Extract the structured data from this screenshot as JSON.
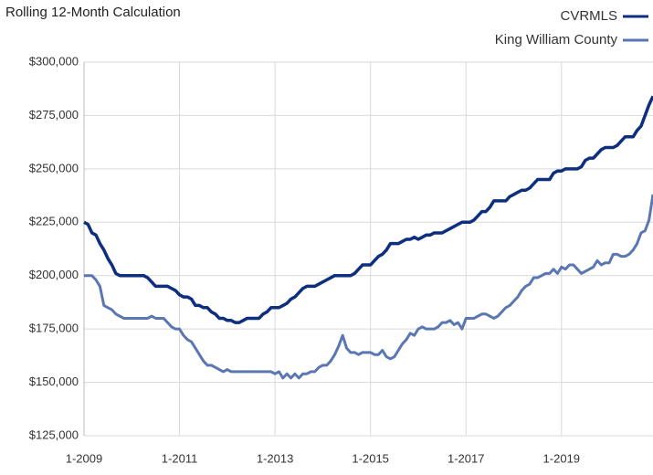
{
  "chart_data": {
    "type": "line",
    "title": "Rolling 12-Month Calculation",
    "categories": [
      "1-2009",
      null,
      null,
      null,
      null,
      null,
      null,
      null,
      null,
      null,
      null,
      null,
      null,
      null,
      null,
      null,
      null,
      null,
      null,
      null,
      null,
      null,
      null,
      null,
      "1-2011",
      null,
      null,
      null,
      null,
      null,
      null,
      null,
      null,
      null,
      null,
      null,
      null,
      null,
      null,
      null,
      null,
      null,
      null,
      null,
      null,
      null,
      null,
      null,
      "1-2013",
      null,
      null,
      null,
      null,
      null,
      null,
      null,
      null,
      null,
      null,
      null,
      null,
      null,
      null,
      null,
      null,
      null,
      null,
      null,
      null,
      null,
      null,
      null,
      "1-2015",
      null,
      null,
      null,
      null,
      null,
      null,
      null,
      null,
      null,
      null,
      null,
      null,
      null,
      null,
      null,
      null,
      null,
      null,
      null,
      null,
      null,
      null,
      null,
      "1-2017",
      null,
      null,
      null,
      null,
      null,
      null,
      null,
      null,
      null,
      null,
      null,
      null,
      null,
      null,
      null,
      null,
      null,
      null,
      null,
      null,
      null,
      null,
      null,
      "1-2019",
      null,
      null,
      null,
      null,
      null,
      null,
      null,
      null,
      null,
      null,
      null,
      null,
      null,
      null,
      null,
      null,
      null,
      null,
      null,
      null,
      null,
      null,
      null
    ],
    "series": [
      {
        "name": "CVRMLS",
        "color": "#0d2f7e",
        "values": [
          225000,
          224000,
          220000,
          219000,
          215000,
          212000,
          208000,
          205000,
          201000,
          200000,
          200000,
          200000,
          200000,
          200000,
          200000,
          200000,
          199000,
          197000,
          195000,
          195000,
          195000,
          195000,
          194000,
          193000,
          191000,
          190000,
          190000,
          189000,
          186000,
          186000,
          185000,
          185000,
          183000,
          182000,
          180000,
          180000,
          179000,
          179000,
          178000,
          178000,
          179000,
          180000,
          180000,
          180000,
          180000,
          182000,
          183000,
          185000,
          185000,
          185000,
          186000,
          187000,
          189000,
          190000,
          192000,
          194000,
          195000,
          195000,
          195000,
          196000,
          197000,
          198000,
          199000,
          200000,
          200000,
          200000,
          200000,
          200000,
          201000,
          203000,
          205000,
          205000,
          205000,
          207000,
          209000,
          210000,
          212000,
          215000,
          215000,
          215000,
          216000,
          217000,
          217000,
          218000,
          217000,
          218000,
          219000,
          219000,
          220000,
          220000,
          220000,
          221000,
          222000,
          223000,
          224000,
          225000,
          225000,
          225000,
          226000,
          228000,
          230000,
          230000,
          232000,
          235000,
          235000,
          235000,
          235000,
          237000,
          238000,
          239000,
          240000,
          240000,
          241000,
          243000,
          245000,
          245000,
          245000,
          245000,
          248000,
          249000,
          249000,
          250000,
          250000,
          250000,
          250000,
          251000,
          254000,
          255000,
          255000,
          257000,
          259000,
          260000,
          260000,
          260000,
          261000,
          263000,
          265000,
          265000,
          265000,
          268000,
          270000,
          275000,
          280000,
          284000
        ]
      },
      {
        "name": "King William County",
        "color": "#5b77b3",
        "values": [
          200000,
          200000,
          200000,
          198000,
          195000,
          186000,
          185000,
          184000,
          182000,
          181000,
          180000,
          180000,
          180000,
          180000,
          180000,
          180000,
          180000,
          181000,
          180000,
          180000,
          180000,
          178000,
          176000,
          175000,
          175000,
          172000,
          170000,
          169000,
          166000,
          163000,
          160000,
          158000,
          158000,
          157000,
          156000,
          155000,
          156000,
          155000,
          155000,
          155000,
          155000,
          155000,
          155000,
          155000,
          155000,
          155000,
          155000,
          155000,
          154000,
          155000,
          152000,
          154000,
          152000,
          154000,
          152000,
          154000,
          154000,
          155000,
          155000,
          157000,
          158000,
          158000,
          160000,
          163000,
          167000,
          172000,
          166000,
          164000,
          164000,
          163000,
          164000,
          164000,
          164000,
          163000,
          163000,
          165000,
          162000,
          161000,
          162000,
          165000,
          168000,
          170000,
          173000,
          172000,
          175000,
          176000,
          175000,
          175000,
          175000,
          176000,
          178000,
          178000,
          179000,
          177000,
          178000,
          175000,
          180000,
          180000,
          180000,
          181000,
          182000,
          182000,
          181000,
          180000,
          181000,
          183000,
          185000,
          186000,
          188000,
          190000,
          193000,
          195000,
          196000,
          199000,
          199000,
          200000,
          201000,
          201000,
          203000,
          201000,
          204000,
          203000,
          205000,
          205000,
          203000,
          201000,
          202000,
          203000,
          204000,
          207000,
          205000,
          206000,
          206000,
          210000,
          210000,
          209000,
          209000,
          210000,
          212000,
          215000,
          220000,
          221000,
          226000,
          238000
        ]
      }
    ],
    "ylim": [
      125000,
      300000
    ],
    "yticks": [
      {
        "value": 125000,
        "label": "$125,000"
      },
      {
        "value": 150000,
        "label": "$150,000"
      },
      {
        "value": 175000,
        "label": "$175,000"
      },
      {
        "value": 200000,
        "label": "$200,000"
      },
      {
        "value": 225000,
        "label": "$225,000"
      },
      {
        "value": 250000,
        "label": "$250,000"
      },
      {
        "value": 275000,
        "label": "$275,000"
      },
      {
        "value": 300000,
        "label": "$300,000"
      }
    ],
    "grid": true,
    "legend": "top-right"
  }
}
